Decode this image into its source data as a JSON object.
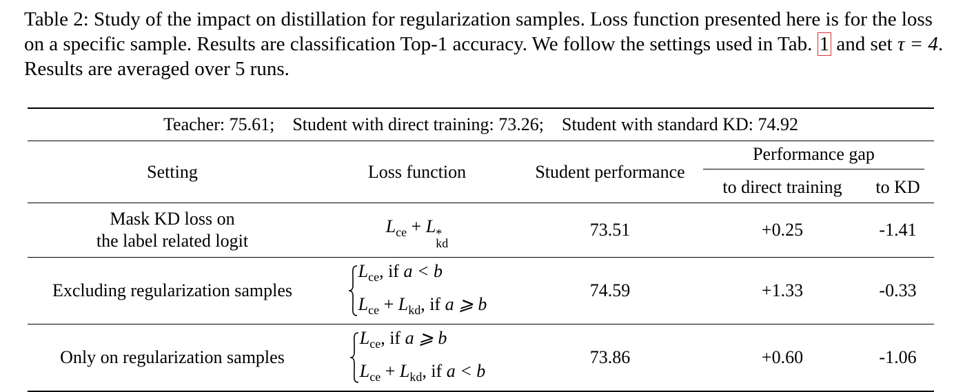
{
  "caption": {
    "label": "Table 2:",
    "text": "Study of the impact on distillation for regularization samples. Loss function presented here is for the loss on a specific sample. Results are classification Top-1 accuracy. We follow the settings used in Tab.",
    "ref": "1",
    "after_ref": "and set",
    "math": "τ = 4",
    "end": ". Results are averaged over 5 runs."
  },
  "table": {
    "summary": [
      "Teacher: 75.61;",
      "Student with direct training: 73.26;",
      "Student with standard KD: 74.92"
    ],
    "headers": {
      "setting": "Setting",
      "loss": "Loss function",
      "student": "Student performance",
      "gap": "Performance gap",
      "gap_direct": "to direct training",
      "gap_kd": "to KD"
    },
    "rows": [
      {
        "setting": [
          "Mask KD loss on",
          "the label related logit"
        ],
        "loss": [
          [
            {
              "math": "L",
              "sub": "ce"
            },
            {
              "text": " + "
            },
            {
              "math": "L",
              "sub": "kd",
              "sup": "*"
            }
          ]
        ],
        "student": "73.51",
        "gap_direct": "+0.25",
        "gap_kd": "-1.41"
      },
      {
        "setting": [
          "Excluding regularization samples"
        ],
        "loss": [
          [
            {
              "math": "L",
              "sub": "ce"
            },
            {
              "text": ", if "
            },
            {
              "math": "a < b"
            }
          ],
          [
            {
              "math": "L",
              "sub": "ce"
            },
            {
              "text": " + "
            },
            {
              "math": "L",
              "sub": "kd"
            },
            {
              "text": ", if "
            },
            {
              "math": "a ⩾ b"
            }
          ]
        ],
        "student": "74.59",
        "gap_direct": "+1.33",
        "gap_kd": "-0.33"
      },
      {
        "setting": [
          "Only on regularization samples"
        ],
        "loss": [
          [
            {
              "math": "L",
              "sub": "ce"
            },
            {
              "text": ", if "
            },
            {
              "math": "a ⩾ b"
            }
          ],
          [
            {
              "math": "L",
              "sub": "ce"
            },
            {
              "text": " + "
            },
            {
              "math": "L",
              "sub": "kd"
            },
            {
              "text": ", if "
            },
            {
              "math": "a < b"
            }
          ]
        ],
        "student": "73.86",
        "gap_direct": "+0.60",
        "gap_kd": "-1.06"
      }
    ]
  }
}
